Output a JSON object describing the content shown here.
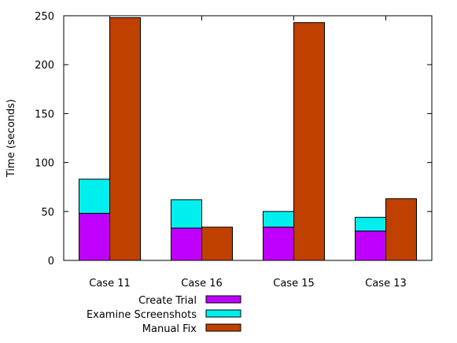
{
  "chart_data": {
    "type": "bar",
    "stacked_and_grouped": true,
    "ylabel": "Time (seconds)",
    "xlabel": "",
    "title": "",
    "ylim": [
      0,
      250
    ],
    "yticks": [
      0,
      50,
      100,
      150,
      200,
      250
    ],
    "categories": [
      "Case 11",
      "Case 16",
      "Case 15",
      "Case 13"
    ],
    "series": [
      {
        "name": "Create Trial",
        "stack": "left",
        "color": "#bf00ff",
        "values": [
          48,
          33,
          34,
          30
        ]
      },
      {
        "name": "Examine Screenshots",
        "stack": "left",
        "color": "#00eeee",
        "values": [
          35,
          29,
          16,
          14
        ]
      },
      {
        "name": "Manual Fix",
        "stack": "right",
        "color": "#c04000",
        "values": [
          248,
          34,
          243,
          63
        ]
      }
    ],
    "legend": {
      "placement": "bottom-center"
    },
    "grid": false
  }
}
